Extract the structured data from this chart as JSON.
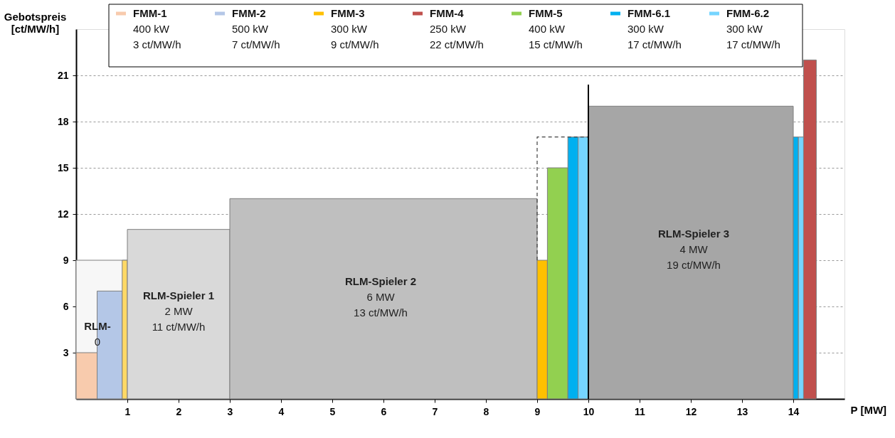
{
  "chart_data": {
    "type": "area",
    "xlabel": "P [MW]",
    "ylabel": "Gebotspreis [ct/MW/h]",
    "xlim": [
      0,
      15
    ],
    "ylim": [
      0,
      24
    ],
    "xticks": [
      1,
      2,
      3,
      4,
      5,
      6,
      7,
      8,
      9,
      10,
      11,
      12,
      13,
      14
    ],
    "yticks": [
      3,
      6,
      9,
      12,
      15,
      18,
      21
    ],
    "grid": "y",
    "legend": "top",
    "series": [
      {
        "x": [
          0,
          1
        ],
        "values": [
          9,
          9
        ],
        "color": "#f7f7f7"
      },
      {
        "name": "FMM-1\n400 kW\n3 ct/MW/h",
        "x": [
          0,
          0.41
        ],
        "values": [
          3,
          3
        ],
        "color": "#f8cbad"
      },
      {
        "name": "FMM-2\n500 kW\n7 ct/MW/h",
        "x": [
          0.41,
          0.9
        ],
        "values": [
          7,
          7
        ],
        "color": "#b4c7e7"
      },
      {
        "x": [
          0.9,
          1
        ],
        "values": [
          9,
          9
        ],
        "color": "#ffd966"
      },
      {
        "x": [
          1,
          3
        ],
        "values": [
          11,
          11
        ],
        "color": "#d9d9d9"
      },
      {
        "x": [
          3,
          9
        ],
        "values": [
          13,
          13
        ],
        "color": "#bfbfbf"
      },
      {
        "name": "FMM-3\n300 kW\n9 ct/MW/h",
        "x": [
          9,
          9.2
        ],
        "values": [
          9,
          9
        ],
        "color": "#ffc000"
      },
      {
        "name": "FMM-4\n250 kW\n22 ct/MW/h",
        "x": [
          14.2,
          14.45
        ],
        "values": [
          22,
          22
        ],
        "color": "#c0504d"
      },
      {
        "name": "FMM-5\n400 kW\n15 ct/MW/h",
        "x": [
          9.2,
          9.6
        ],
        "values": [
          15,
          15
        ],
        "color": "#92d050"
      },
      {
        "name": "FMM-6.1\n300 kW\n17 ct/MW/h",
        "x": [
          9.6,
          9.8
        ],
        "values": [
          17,
          17
        ],
        "color": "#00b0f0"
      },
      {
        "name": "FMM-6.2\n300 kW\n17 ct/MW/h",
        "x": [
          9.8,
          10
        ],
        "values": [
          17,
          17
        ],
        "color": "#75d5ff"
      },
      {
        "x": [
          10,
          14
        ],
        "values": [
          19,
          19
        ],
        "color": "#a6a6a6"
      },
      {
        "x": [
          14,
          14.1
        ],
        "values": [
          17,
          17
        ],
        "color": "#00b0f0"
      },
      {
        "x": [
          14.1,
          14.2
        ],
        "values": [
          17,
          17
        ],
        "color": "#75d5ff"
      },
      {
        "type": "line",
        "line_style": "dashed",
        "x": [
          9,
          9,
          10
        ],
        "values": [
          9,
          17,
          17
        ],
        "color": "#404040"
      },
      {
        "type": "line",
        "line_style": "solid",
        "x": [
          10,
          10
        ],
        "values": [
          0,
          20.4
        ],
        "color": "#000000"
      }
    ],
    "annotations": [
      "RLM-\n0",
      "RLM-Spieler 1\n2 MW\n11 ct/MW/h",
      "RLM-Spieler 2\n6 MW\n13 ct/MW/h",
      "RLM-Spieler 3\n4 MW\n19 ct/MW/h"
    ]
  }
}
